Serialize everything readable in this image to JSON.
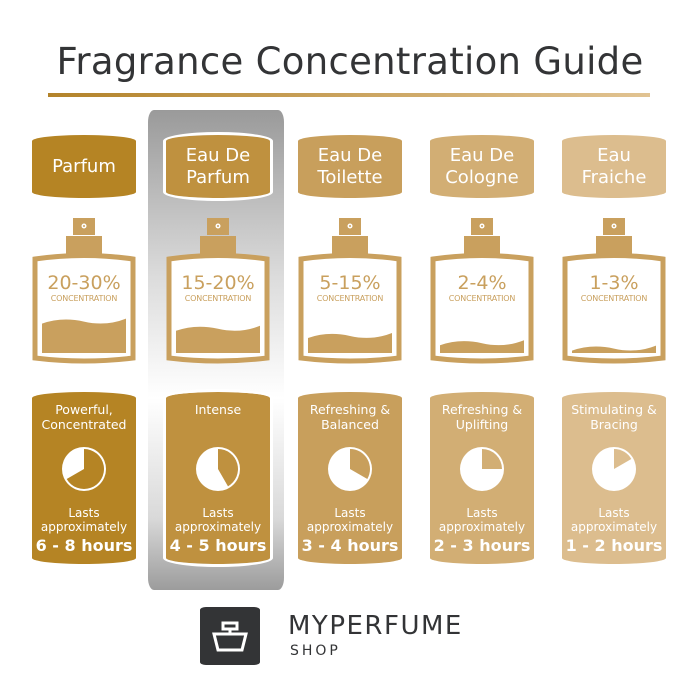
{
  "title": "Fragrance Concentration Guide",
  "highlighted": 1,
  "columns": [
    {
      "name": "Parfum",
      "percent": "20-30%",
      "concentration_label": "CONCENTRATION",
      "fill_level": 0.36,
      "description": "Powerful,\nConcentrated",
      "lasts": "Lasts\napproximately",
      "hours": "6 - 8 hours",
      "pie_hours": 8,
      "color": "#b58424"
    },
    {
      "name": "Eau De\nParfum",
      "percent": "15-20%",
      "concentration_label": "CONCENTRATION",
      "fill_level": 0.28,
      "description": "Intense",
      "lasts": "Lasts\napproximately",
      "hours": "4 - 5 hours",
      "pie_hours": 5,
      "color": "#bf913f"
    },
    {
      "name": "Eau De\nToilette",
      "percent": "5-15%",
      "concentration_label": "CONCENTRATION",
      "fill_level": 0.2,
      "description": "Refreshing &\nBalanced",
      "lasts": "Lasts\napproximately",
      "hours": "3 - 4 hours",
      "pie_hours": 4,
      "color": "#c89f5c"
    },
    {
      "name": "Eau De\nCologne",
      "percent": "2-4%",
      "concentration_label": "CONCENTRATION",
      "fill_level": 0.12,
      "description": "Refreshing &\nUplifting",
      "lasts": "Lasts\napproximately",
      "hours": "2 - 3 hours",
      "pie_hours": 3,
      "color": "#d2ae74"
    },
    {
      "name": "Eau\nFraiche",
      "percent": "1-3%",
      "concentration_label": "CONCENTRATION",
      "fill_level": 0.06,
      "description": "Stimulating &\nBracing",
      "lasts": "Lasts\napproximately",
      "hours": "1 - 2 hours",
      "pie_hours": 2,
      "color": "#dcbd8e"
    }
  ],
  "bottle_color": "#c9a05e",
  "brand": {
    "name": "MYPERFUME",
    "sub": "SHOP"
  }
}
